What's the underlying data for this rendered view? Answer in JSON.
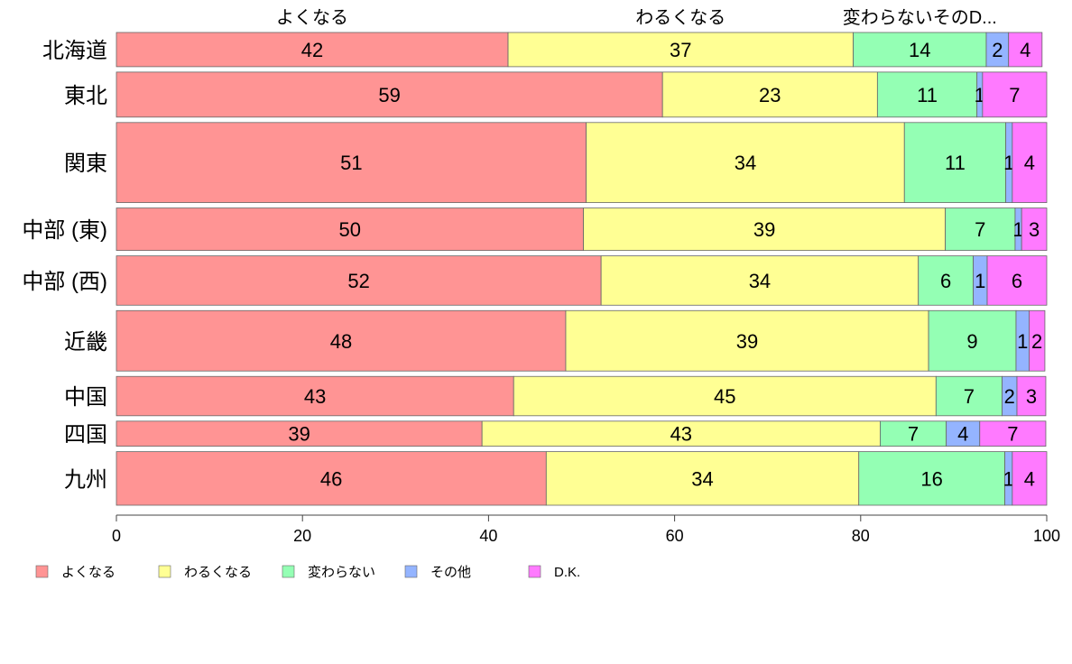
{
  "chart_data": {
    "type": "bar",
    "orientation": "horizontal",
    "stacked": true,
    "categories": [
      "北海道",
      "東北",
      "関東",
      "中部 (東)",
      "中部 (西)",
      "近畿",
      "中国",
      "四国",
      "九州"
    ],
    "series": [
      {
        "name": "よくなる",
        "color": "#ff9494",
        "values": [
          42,
          59,
          51,
          50,
          52,
          48,
          43,
          39,
          46
        ]
      },
      {
        "name": "わるくなる",
        "color": "#ffff94",
        "values": [
          37,
          23,
          34,
          39,
          34,
          39,
          45,
          43,
          34
        ]
      },
      {
        "name": "変わらない",
        "color": "#94ffb4",
        "values": [
          14,
          11,
          11,
          7,
          6,
          9,
          7,
          7,
          16
        ]
      },
      {
        "name": "その他",
        "color": "#94b4ff",
        "values": [
          2,
          1,
          1,
          1,
          1,
          1,
          2,
          4,
          1
        ]
      },
      {
        "name": "D.K.",
        "color": "#ff7aff",
        "values": [
          4,
          7,
          4,
          3,
          6,
          2,
          3,
          7,
          4
        ]
      }
    ],
    "segment_fractions": [
      [
        0.421,
        0.371,
        0.143,
        0.024,
        0.036
      ],
      [
        0.587,
        0.231,
        0.107,
        0.006,
        0.069
      ],
      [
        0.505,
        0.342,
        0.109,
        0.007,
        0.037
      ],
      [
        0.502,
        0.389,
        0.075,
        0.007,
        0.027
      ],
      [
        0.521,
        0.341,
        0.059,
        0.015,
        0.064
      ],
      [
        0.483,
        0.39,
        0.094,
        0.014,
        0.017
      ],
      [
        0.427,
        0.454,
        0.071,
        0.016,
        0.031
      ],
      [
        0.393,
        0.428,
        0.071,
        0.036,
        0.071
      ],
      [
        0.462,
        0.336,
        0.157,
        0.008,
        0.037
      ]
    ],
    "row_weights": [
      1.2,
      1.58,
      2.81,
      1.49,
      1.73,
      2.12,
      1.38,
      0.88,
      1.88
    ],
    "top_labels": [
      "よくなる",
      "わるくなる",
      "変わらないそのD..."
    ],
    "xlim": [
      0,
      100
    ],
    "xticks": [
      0,
      20,
      40,
      60,
      80,
      100
    ],
    "grid": false,
    "legend": "bottom-left"
  }
}
